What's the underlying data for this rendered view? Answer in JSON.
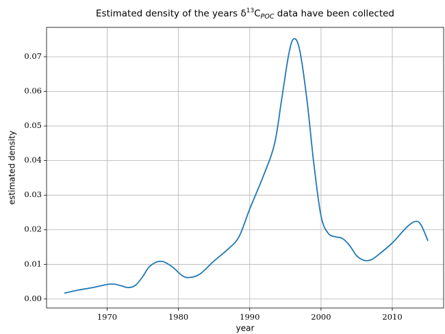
{
  "chart_data": {
    "type": "line",
    "title": {
      "before": "Estimated density of the years δ",
      "sup": "13",
      "mid": "C",
      "sub": "POC",
      "after": " data have been collected"
    },
    "x_label": "year",
    "y_label": "estimated density",
    "xlim": [
      1961.5,
      2017.2
    ],
    "ylim": [
      -0.0026,
      0.0785
    ],
    "xticks": [
      1970,
      1980,
      1990,
      2000,
      2010
    ],
    "yticks": [
      {
        "value": 0,
        "label": "0.00"
      },
      0.01,
      0.02,
      0.03,
      0.04,
      0.05,
      0.06,
      0.07
    ],
    "grid": true,
    "series": [
      {
        "color": "#1f77b4",
        "x": [
          1964,
          1966,
          1968,
          1970,
          1971,
          1972,
          1973,
          1974,
          1975,
          1976,
          1977.5,
          1979,
          1980.5,
          1981.5,
          1983,
          1985,
          1987,
          1988.5,
          1990,
          1992,
          1993.5,
          1994.5,
          1995.5,
          1996.2,
          1997,
          1998,
          1999,
          2000,
          2001,
          2002,
          2003,
          2004,
          2005,
          2006,
          2007,
          2008,
          2010,
          2012,
          2013.2,
          2014,
          2015
        ],
        "values": [
          0.0017,
          0.0026,
          0.0033,
          0.0042,
          0.0043,
          0.0038,
          0.0033,
          0.004,
          0.0065,
          0.0095,
          0.0109,
          0.0095,
          0.0068,
          0.0062,
          0.0072,
          0.011,
          0.0145,
          0.018,
          0.026,
          0.036,
          0.045,
          0.058,
          0.071,
          0.0752,
          0.072,
          0.058,
          0.039,
          0.024,
          0.019,
          0.018,
          0.0175,
          0.0155,
          0.0125,
          0.0112,
          0.0113,
          0.0127,
          0.0162,
          0.0207,
          0.0224,
          0.0215,
          0.0168
        ]
      }
    ]
  }
}
